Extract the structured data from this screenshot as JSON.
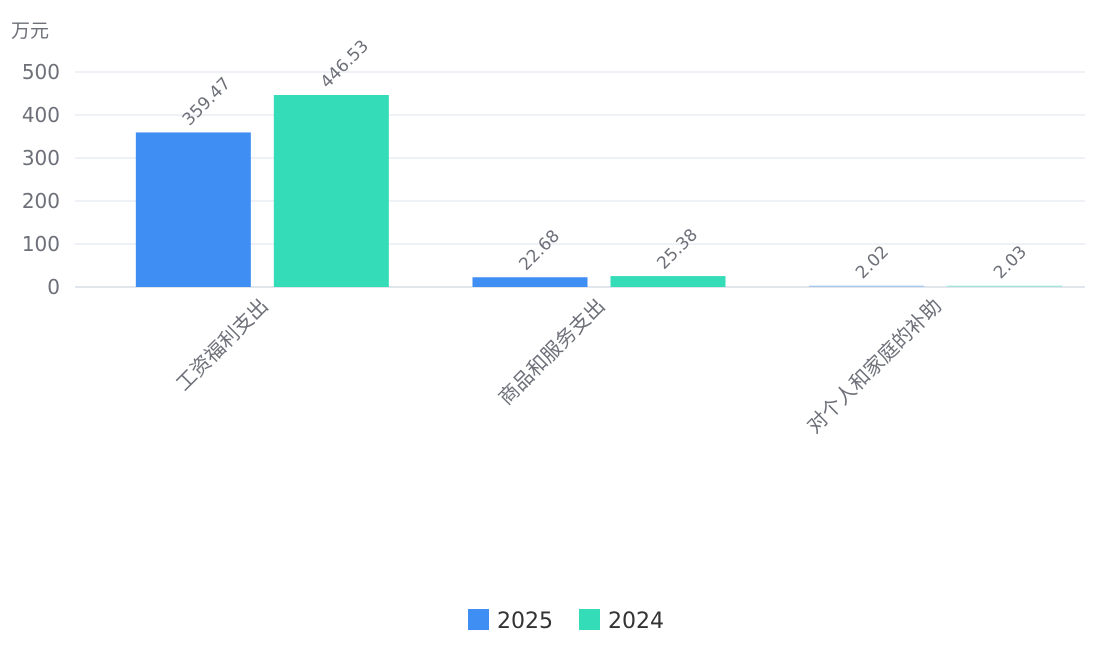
{
  "chart_data": {
    "type": "bar",
    "unit": "万元",
    "categories": [
      "工资福利支出",
      "商品和服务支出",
      "对个人和家庭的补助"
    ],
    "series": [
      {
        "name": "2025",
        "color": "#3f8ef3",
        "values": [
          359.47,
          22.68,
          2.02
        ]
      },
      {
        "name": "2024",
        "color": "#34dcb8",
        "values": [
          446.53,
          25.38,
          2.03
        ]
      }
    ],
    "yticks": [
      0,
      100,
      200,
      300,
      400,
      500
    ],
    "ylim": [
      0,
      500
    ],
    "grid": true,
    "legend_position": "bottom-center"
  }
}
